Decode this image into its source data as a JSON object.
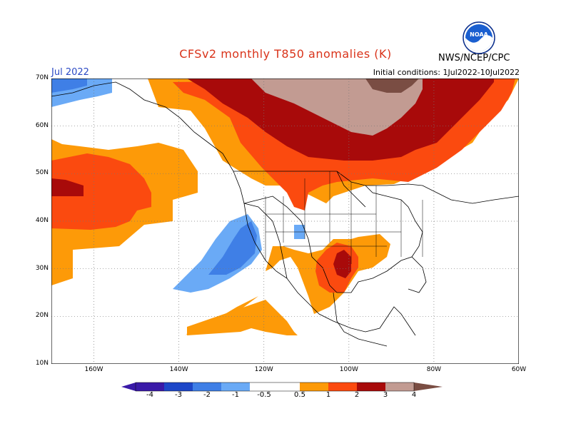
{
  "title": "CFSv2 monthly T850 anomalies (K)",
  "month": "Jul 2022",
  "initial_conditions": "Initial conditions: 1Jul2022-10Jul2022",
  "agency": "NWS/NCEP/CPC",
  "logo": {
    "icon": "noaa-logo-icon",
    "text": "NOAA"
  },
  "colors": {
    "neg4": "#3a1aa8",
    "neg3": "#1d47c8",
    "neg2": "#3f7fe6",
    "neg1": "#6aaaf6",
    "pos05": "#fd9a08",
    "pos1": "#fb4a0f",
    "pos2": "#a80a0a",
    "pos3": "#c29b92",
    "pos4": "#7a4d43"
  },
  "map": {
    "lon_min": -170,
    "lon_max": -60,
    "lat_min": 10,
    "lat_max": 70,
    "lat_labels": [
      "70N",
      "60N",
      "50N",
      "40N",
      "30N",
      "20N",
      "10N"
    ],
    "lat_values": [
      70,
      60,
      50,
      40,
      30,
      20,
      10
    ],
    "lon_labels": [
      "160W",
      "140W",
      "120W",
      "100W",
      "80W",
      "60W"
    ],
    "lon_values": [
      -160,
      -140,
      -120,
      -100,
      -80,
      -60
    ]
  },
  "colorbar": {
    "labels": [
      "-4",
      "-3",
      "-2",
      "-1",
      "-0.5",
      "0.5",
      "1",
      "2",
      "3",
      "4"
    ]
  }
}
